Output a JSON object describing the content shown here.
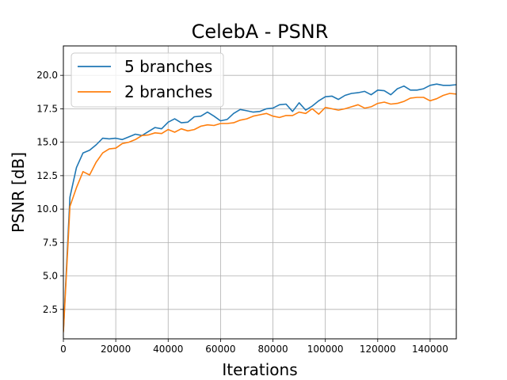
{
  "chart_data": {
    "type": "line",
    "title": "CelebA - PSNR",
    "xlabel": "Iterations",
    "ylabel": "PSNR [dB]",
    "xlim": [
      0,
      150000
    ],
    "ylim": [
      0.3,
      22.2
    ],
    "xticks": [
      0,
      20000,
      40000,
      60000,
      80000,
      100000,
      120000,
      140000
    ],
    "xtick_labels": [
      "0",
      "20000",
      "40000",
      "60000",
      "80000",
      "100000",
      "120000",
      "140000"
    ],
    "yticks": [
      2.5,
      5.0,
      7.5,
      10.0,
      12.5,
      15.0,
      17.5,
      20.0
    ],
    "ytick_labels": [
      "2.5",
      "5.0",
      "7.5",
      "10.0",
      "12.5",
      "15.0",
      "17.5",
      "20.0"
    ],
    "grid": true,
    "legend_position": "top-left",
    "x": [
      0,
      2500,
      5000,
      7500,
      10000,
      12500,
      15000,
      17500,
      20000,
      22500,
      25000,
      27500,
      30000,
      32500,
      35000,
      37500,
      40000,
      42500,
      45000,
      47500,
      50000,
      52500,
      55000,
      57500,
      60000,
      62500,
      65000,
      67500,
      70000,
      72500,
      75000,
      77500,
      80000,
      82500,
      85000,
      87500,
      90000,
      92500,
      95000,
      97500,
      100000,
      102500,
      105000,
      107500,
      110000,
      112500,
      115000,
      117500,
      120000,
      122500,
      125000,
      127500,
      130000,
      132500,
      135000,
      137500,
      140000,
      142500,
      145000,
      147500,
      150000
    ],
    "series": [
      {
        "name": "5 branches",
        "color": "#1f77b4",
        "values": [
          0.9,
          10.9,
          13.1,
          14.2,
          14.4,
          14.8,
          15.3,
          15.25,
          15.3,
          15.2,
          15.4,
          15.6,
          15.5,
          15.8,
          16.1,
          16.0,
          16.5,
          16.75,
          16.45,
          16.5,
          16.9,
          16.95,
          17.25,
          16.95,
          16.6,
          16.7,
          17.15,
          17.45,
          17.35,
          17.25,
          17.3,
          17.5,
          17.55,
          17.8,
          17.85,
          17.3,
          17.95,
          17.4,
          17.7,
          18.1,
          18.4,
          18.45,
          18.2,
          18.5,
          18.65,
          18.7,
          18.8,
          18.55,
          18.9,
          18.85,
          18.55,
          19.0,
          19.2,
          18.9,
          18.9,
          19.0,
          19.25,
          19.35,
          19.25,
          19.25,
          19.3
        ]
      },
      {
        "name": "2 branches",
        "color": "#ff7f0e",
        "values": [
          0.8,
          10.2,
          11.6,
          12.8,
          12.55,
          13.5,
          14.2,
          14.5,
          14.55,
          14.9,
          15.0,
          15.2,
          15.5,
          15.55,
          15.7,
          15.65,
          15.95,
          15.75,
          16.0,
          15.85,
          15.95,
          16.2,
          16.3,
          16.25,
          16.4,
          16.4,
          16.45,
          16.65,
          16.75,
          16.95,
          17.05,
          17.15,
          16.95,
          16.85,
          17.0,
          17.0,
          17.25,
          17.15,
          17.5,
          17.1,
          17.6,
          17.5,
          17.4,
          17.5,
          17.65,
          17.8,
          17.55,
          17.65,
          17.9,
          18.0,
          17.85,
          17.9,
          18.05,
          18.3,
          18.35,
          18.35,
          18.1,
          18.25,
          18.5,
          18.65,
          18.6
        ]
      }
    ]
  }
}
